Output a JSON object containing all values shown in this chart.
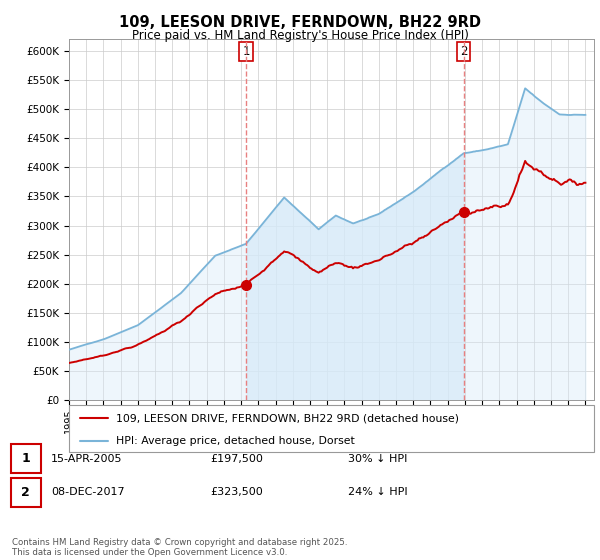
{
  "title": "109, LEESON DRIVE, FERNDOWN, BH22 9RD",
  "subtitle": "Price paid vs. HM Land Registry's House Price Index (HPI)",
  "hpi_label": "HPI: Average price, detached house, Dorset",
  "property_label": "109, LEESON DRIVE, FERNDOWN, BH22 9RD (detached house)",
  "hpi_color": "#7ab4d8",
  "hpi_fill_color": "#d6eaf8",
  "property_color": "#cc0000",
  "vline_color": "#e88080",
  "marker1_date": "15-APR-2005",
  "marker1_price": 197500,
  "marker1_hpi_diff": "30% ↓ HPI",
  "marker2_date": "08-DEC-2017",
  "marker2_price": 323500,
  "marker2_hpi_diff": "24% ↓ HPI",
  "ylim": [
    0,
    620000
  ],
  "xlim": [
    1995,
    2025.5
  ],
  "footnote": "Contains HM Land Registry data © Crown copyright and database right 2025.\nThis data is licensed under the Open Government Licence v3.0.",
  "background_color": "#ffffff",
  "year1": 2005.29,
  "year2": 2017.92
}
